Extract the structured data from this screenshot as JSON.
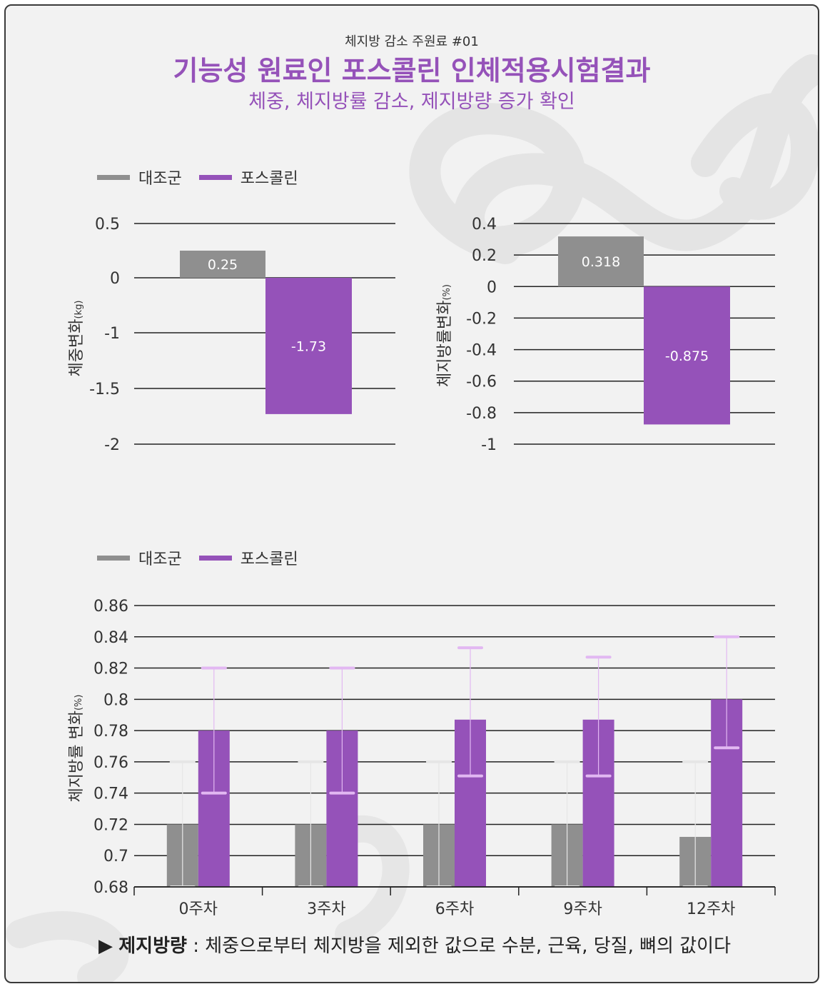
{
  "header": {
    "supertitle": "체지방 감소 주원료 #01",
    "title": "기능성 원료인 포스콜린 인체적용시험결과",
    "subtitle": "체중, 체지방률 감소, 제지방량 증가 확인"
  },
  "legend_top": {
    "control": "대조군",
    "treatment": "포스콜린"
  },
  "legend_bottom": {
    "control": "대조군",
    "treatment": "포스콜린"
  },
  "colors": {
    "control": "#8f8f8f",
    "treatment": "#9552b9",
    "grid": "#222222",
    "err_control": "#e6e6e6",
    "err_treatment": "#e2b8f2"
  },
  "footnote": {
    "arrow": "▶",
    "term": "제지방량",
    "text": " : 체중으로부터 체지방을 제외한 값으로 수분, 근육, 당질, 뼈의 값이다"
  },
  "chart_data": [
    {
      "type": "bar",
      "ylabel": "체중변화",
      "yunit": "(kg)",
      "yticks": [
        "0.5",
        "0",
        "-1",
        "-1.5",
        "-2"
      ],
      "series": [
        {
          "name": "대조군",
          "values": [
            0.25
          ],
          "label": "0.25"
        },
        {
          "name": "포스콜린",
          "values": [
            -1.73
          ],
          "label": "-1.73"
        }
      ]
    },
    {
      "type": "bar",
      "ylabel": "체지방률변화",
      "yunit": "(%)",
      "yticks": [
        "0.4",
        "0.2",
        "0",
        "-0.2",
        "-0.4",
        "-0.6",
        "-0.8",
        "-1"
      ],
      "ylim": [
        -1,
        0.4
      ],
      "series": [
        {
          "name": "대조군",
          "values": [
            0.318
          ],
          "label": "0.318"
        },
        {
          "name": "포스콜린",
          "values": [
            -0.875
          ],
          "label": "-0.875"
        }
      ]
    },
    {
      "type": "bar",
      "ylabel": "체지방률 변화",
      "yunit": "(%)",
      "categories": [
        "0주차",
        "3주차",
        "6주차",
        "9주차",
        "12주차"
      ],
      "yticks": [
        "0.86",
        "0.84",
        "0.82",
        "0.8",
        "0.78",
        "0.76",
        "0.74",
        "0.72",
        "0.7",
        "0.68"
      ],
      "ylim": [
        0.68,
        0.86
      ],
      "series": [
        {
          "name": "대조군",
          "values": [
            0.72,
            0.72,
            0.72,
            0.72,
            0.712
          ],
          "err_low": [
            0.68,
            0.68,
            0.68,
            0.68,
            0.68
          ],
          "err_high": [
            0.76,
            0.76,
            0.76,
            0.76,
            0.76
          ]
        },
        {
          "name": "포스콜린",
          "values": [
            0.78,
            0.78,
            0.787,
            0.787,
            0.8
          ],
          "err_low": [
            0.74,
            0.74,
            0.751,
            0.751,
            0.769
          ],
          "err_high": [
            0.82,
            0.82,
            0.833,
            0.827,
            0.84
          ]
        }
      ]
    }
  ]
}
